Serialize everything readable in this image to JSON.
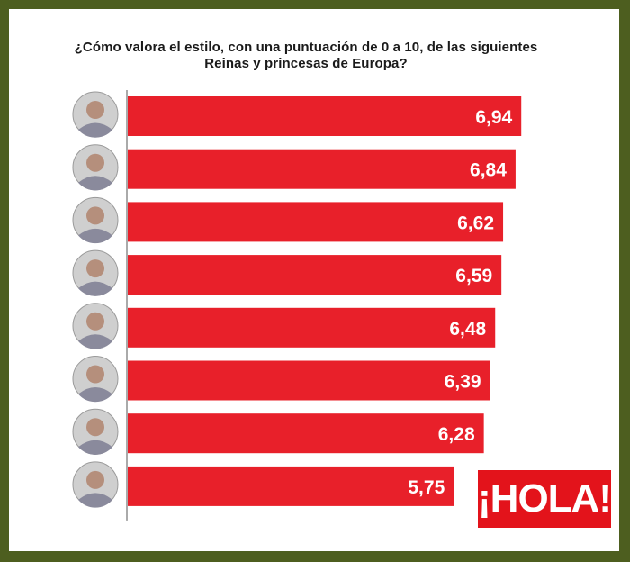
{
  "chart_data": {
    "type": "bar",
    "orientation": "horizontal",
    "title_line1": "¿Cómo valora el estilo, con una puntuación de 0 a 10, de las siguientes",
    "title_line2": "Reinas y princesas de Europa?",
    "categories": [
      "",
      "",
      "",
      "",
      "",
      "",
      "",
      ""
    ],
    "values": [
      6.94,
      6.84,
      6.62,
      6.59,
      6.48,
      6.39,
      6.28,
      5.75
    ],
    "value_labels": [
      "6,94",
      "6,84",
      "6,62",
      "6,59",
      "6,48",
      "6,39",
      "6,28",
      "5,75"
    ],
    "xlim": [
      0,
      7.5
    ],
    "grid": false,
    "bar_color": "#e8202a",
    "label_color": "#ffffff"
  },
  "logo": {
    "text": "¡HOLA!",
    "color": "#e3131b"
  }
}
